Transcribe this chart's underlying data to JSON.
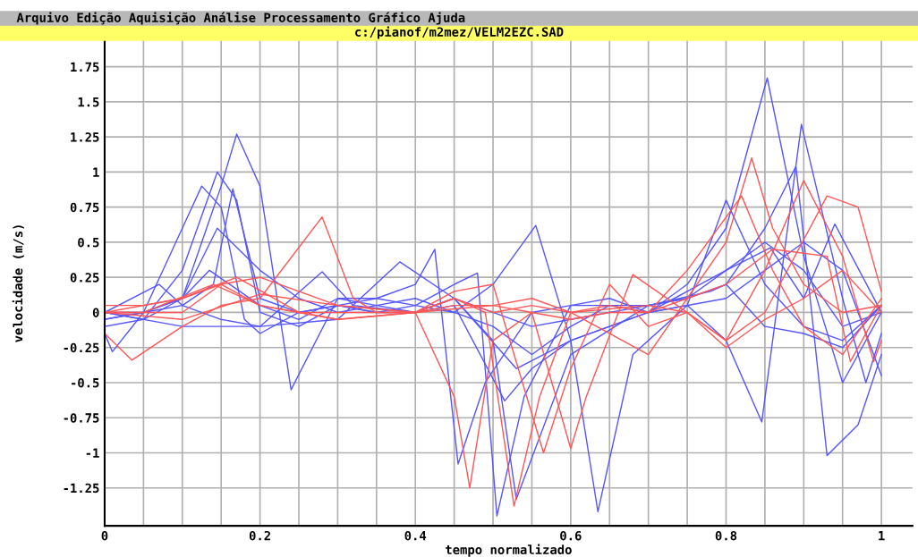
{
  "chart_data": {
    "type": "line",
    "title": "c:/pianof/m2mez/VELM2EZC.SAD",
    "annotations": [
      "Arquivo Edição Aquisição Análise Processamento Gráfico Ajuda"
    ],
    "xlabel": "tempo normalizado",
    "ylabel": "velocidade (m/s)",
    "xlim": [
      0,
      1.04
    ],
    "ylim": [
      -1.52,
      1.94
    ],
    "xticks": [
      0,
      {
        "value": 0.05,
        "label": null
      },
      {
        "value": 0.1,
        "label": null
      },
      {
        "value": 0.15,
        "label": null
      },
      0.2,
      {
        "value": 0.25,
        "label": null
      },
      {
        "value": 0.3,
        "label": null
      },
      {
        "value": 0.35,
        "label": null
      },
      0.4,
      {
        "value": 0.45,
        "label": null
      },
      {
        "value": 0.5,
        "label": null
      },
      {
        "value": 0.55,
        "label": null
      },
      0.6,
      {
        "value": 0.65,
        "label": null
      },
      {
        "value": 0.7,
        "label": null
      },
      {
        "value": 0.75,
        "label": null
      },
      0.8,
      {
        "value": 0.85,
        "label": null
      },
      {
        "value": 0.9,
        "label": null
      },
      {
        "value": 0.95,
        "label": null
      },
      1
    ],
    "yticks": [
      -1.25,
      -1,
      -0.75,
      -0.5,
      -0.25,
      0,
      0.25,
      0.5,
      0.75,
      1,
      1.25,
      1.5,
      1.75
    ],
    "grid": true,
    "marker": "none",
    "line_style": "solid",
    "series": [
      {
        "color": "#5555ff",
        "x": [
          0,
          0.05,
          0.1,
          0.15,
          0.17,
          0.2,
          0.24,
          0.3,
          0.35,
          0.4,
          0.45,
          0.5,
          0.55,
          0.6,
          0.65,
          0.7,
          0.75,
          0.8,
          0.85,
          0.9,
          0.95,
          1
        ],
        "values": [
          -0.05,
          0.0,
          0.1,
          0.9,
          1.27,
          0.9,
          -0.55,
          0.1,
          0.1,
          0.05,
          0.0,
          -0.1,
          -0.3,
          -0.1,
          0.05,
          0.05,
          0.1,
          0.3,
          0.5,
          0.3,
          -0.1,
          0.0
        ]
      },
      {
        "color": "#5555ff",
        "x": [
          0,
          0.05,
          0.1,
          0.145,
          0.17,
          0.2,
          0.25,
          0.3,
          0.35,
          0.4,
          0.425,
          0.455,
          0.49,
          0.55,
          0.6,
          0.65,
          0.7,
          0.75,
          0.8,
          0.85,
          0.9,
          0.95,
          1
        ],
        "values": [
          -0.1,
          -0.05,
          0.3,
          1.0,
          0.8,
          0.0,
          -0.1,
          0.05,
          0.1,
          0.2,
          0.45,
          -1.08,
          -0.5,
          0.0,
          0.05,
          0.05,
          0.0,
          0.05,
          0.8,
          0.2,
          -0.1,
          -0.2,
          0.05
        ]
      },
      {
        "color": "#5555ff",
        "x": [
          0,
          0.05,
          0.1,
          0.125,
          0.15,
          0.18,
          0.2,
          0.25,
          0.3,
          0.35,
          0.4,
          0.45,
          0.48,
          0.505,
          0.54,
          0.6,
          0.65,
          0.7,
          0.75,
          0.8,
          0.853,
          0.9,
          0.95,
          1
        ],
        "values": [
          -0.05,
          0.0,
          0.6,
          0.9,
          0.75,
          -0.05,
          -0.15,
          0.0,
          0.05,
          0.0,
          0.05,
          0.2,
          0.28,
          -1.45,
          -0.6,
          0.05,
          0.1,
          0.0,
          0.2,
          0.6,
          1.67,
          0.4,
          -0.5,
          0.0
        ]
      },
      {
        "color": "#5555ff",
        "x": [
          0,
          0.05,
          0.1,
          0.145,
          0.2,
          0.25,
          0.3,
          0.35,
          0.4,
          0.45,
          0.5,
          0.555,
          0.6,
          0.635,
          0.68,
          0.75,
          0.8,
          0.846,
          0.897,
          0.95,
          0.98,
          1
        ],
        "values": [
          0.0,
          -0.05,
          0.1,
          0.6,
          0.3,
          0.1,
          0.0,
          0.05,
          0.1,
          0.0,
          0.2,
          0.62,
          -0.2,
          -1.42,
          -0.3,
          0.05,
          -0.2,
          -0.78,
          1.34,
          0.1,
          -0.5,
          -0.15
        ]
      },
      {
        "color": "#5555ff",
        "x": [
          0,
          0.05,
          0.1,
          0.14,
          0.165,
          0.2,
          0.25,
          0.3,
          0.35,
          0.4,
          0.45,
          0.5,
          0.53,
          0.6,
          0.7,
          0.75,
          0.8,
          0.85,
          0.89,
          0.93,
          0.97,
          1
        ],
        "values": [
          0.0,
          0.0,
          0.05,
          0.2,
          0.88,
          0.1,
          0.0,
          0.05,
          0.0,
          0.0,
          0.1,
          -0.2,
          -1.33,
          -0.3,
          0.05,
          0.1,
          0.2,
          0.6,
          1.04,
          -1.02,
          -0.8,
          -0.3
        ]
      },
      {
        "color": "#5555ff",
        "x": [
          0,
          0.01,
          0.05,
          0.1,
          0.135,
          0.2,
          0.25,
          0.3,
          0.35,
          0.4,
          0.45,
          0.515,
          0.55,
          0.6,
          0.7,
          0.8,
          0.85,
          0.9,
          0.95,
          1
        ],
        "values": [
          -0.15,
          -0.28,
          0.0,
          0.1,
          0.3,
          0.05,
          -0.05,
          0.1,
          0.05,
          0.0,
          0.05,
          -0.63,
          -0.4,
          -0.2,
          0.0,
          0.1,
          0.3,
          0.5,
          0.3,
          -0.45
        ]
      },
      {
        "color": "#5555ff",
        "x": [
          0,
          0.07,
          0.1,
          0.15,
          0.2,
          0.28,
          0.32,
          0.4,
          0.45,
          0.53,
          0.6,
          0.7,
          0.75,
          0.8,
          0.857,
          0.9,
          0.94,
          1
        ],
        "values": [
          0.0,
          0.2,
          0.05,
          -0.05,
          -0.1,
          0.29,
          0.05,
          0.0,
          0.1,
          -0.4,
          -0.2,
          0.0,
          0.15,
          0.3,
          0.46,
          0.1,
          0.63,
          0.0
        ]
      },
      {
        "color": "#5555ff",
        "x": [
          0,
          0.1,
          0.2,
          0.3,
          0.38,
          0.45,
          0.5,
          0.55,
          0.6,
          0.7,
          0.78,
          0.8,
          0.85,
          0.9,
          0.95,
          1
        ],
        "values": [
          0.0,
          -0.1,
          -0.1,
          -0.05,
          0.36,
          0.1,
          0.0,
          -0.1,
          -0.05,
          0.05,
          0.15,
          0.2,
          -0.1,
          -0.15,
          -0.25,
          0.05
        ]
      },
      {
        "color": "#ff5555",
        "x": [
          0,
          0.035,
          0.1,
          0.15,
          0.2,
          0.28,
          0.32,
          0.35,
          0.4,
          0.45,
          0.47,
          0.5,
          0.55,
          0.6,
          0.65,
          0.7,
          0.75,
          0.82,
          0.86,
          0.9,
          0.95,
          1
        ],
        "values": [
          -0.15,
          -0.34,
          -0.1,
          0.05,
          0.1,
          0.68,
          0.1,
          0.0,
          0.0,
          -0.6,
          -1.25,
          -0.2,
          0.0,
          -0.05,
          0.0,
          0.0,
          0.3,
          0.83,
          0.3,
          -0.1,
          -0.3,
          0.1
        ]
      },
      {
        "color": "#ff5555",
        "x": [
          0,
          0.05,
          0.1,
          0.15,
          0.2,
          0.25,
          0.3,
          0.4,
          0.45,
          0.49,
          0.527,
          0.56,
          0.6,
          0.65,
          0.7,
          0.75,
          0.8,
          0.833,
          0.86,
          0.9,
          0.95,
          1
        ],
        "values": [
          0.05,
          0.05,
          0.1,
          0.2,
          0.05,
          0.0,
          -0.05,
          0.0,
          0.1,
          0.0,
          -1.38,
          -0.6,
          0.0,
          0.05,
          0.0,
          0.1,
          0.5,
          1.1,
          0.6,
          0.2,
          0.0,
          0.05
        ]
      },
      {
        "color": "#ff5555",
        "x": [
          0,
          0.1,
          0.15,
          0.2,
          0.3,
          0.4,
          0.45,
          0.5,
          0.565,
          0.6,
          0.65,
          0.7,
          0.75,
          0.8,
          0.85,
          0.9,
          0.95,
          0.99,
          1
        ],
        "values": [
          0.0,
          0.0,
          0.2,
          0.25,
          0.05,
          0.0,
          0.15,
          0.2,
          -1.0,
          -0.4,
          0.2,
          -0.1,
          0.0,
          -0.2,
          0.3,
          0.94,
          0.4,
          -0.35,
          -0.2
        ]
      },
      {
        "color": "#ff5555",
        "x": [
          0,
          0.1,
          0.17,
          0.25,
          0.3,
          0.4,
          0.45,
          0.5,
          0.55,
          0.6,
          0.62,
          0.68,
          0.75,
          0.8,
          0.85,
          0.93,
          0.97,
          1
        ],
        "values": [
          0.0,
          0.1,
          0.25,
          0.0,
          0.0,
          0.0,
          0.05,
          0.05,
          0.0,
          -0.97,
          -0.6,
          0.27,
          0.0,
          -0.2,
          0.0,
          0.83,
          0.75,
          0.15
        ]
      },
      {
        "color": "#ff5555",
        "x": [
          0,
          0.05,
          0.14,
          0.2,
          0.3,
          0.4,
          0.45,
          0.5,
          0.55,
          0.6,
          0.7,
          0.75,
          0.8,
          0.86,
          0.93,
          0.96,
          1
        ],
        "values": [
          0.0,
          0.0,
          0.2,
          0.05,
          -0.05,
          0.0,
          0.1,
          0.0,
          0.05,
          0.0,
          -0.3,
          0.1,
          0.2,
          0.45,
          0.4,
          -0.35,
          0.05
        ]
      },
      {
        "color": "#ff5555",
        "x": [
          0,
          0.1,
          0.2,
          0.3,
          0.4,
          0.5,
          0.55,
          0.6,
          0.7,
          0.75,
          0.8,
          0.85,
          0.9,
          0.95,
          1
        ],
        "values": [
          0.0,
          -0.05,
          0.13,
          0.05,
          0.0,
          0.05,
          0.1,
          0.0,
          0.05,
          0.0,
          -0.25,
          -0.05,
          0.1,
          0.3,
          0.0
        ]
      }
    ]
  }
}
